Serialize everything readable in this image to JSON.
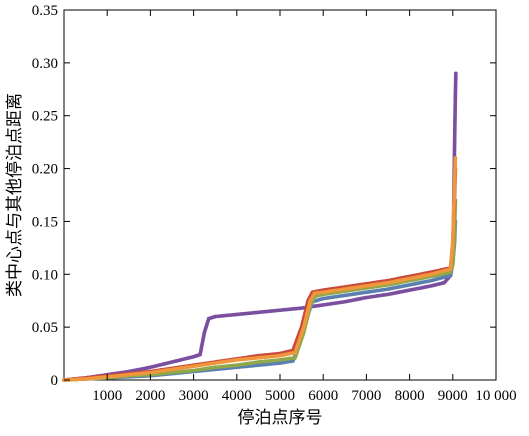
{
  "chart_data": {
    "type": "scatter",
    "title": "",
    "xlabel": "停泊点序号",
    "ylabel": "类中心点与其他停泊点距离",
    "xlim": [
      0,
      10000
    ],
    "ylim": [
      0,
      0.35
    ],
    "xticks": [
      1000,
      2000,
      3000,
      4000,
      5000,
      6000,
      7000,
      8000,
      9000,
      10000
    ],
    "xtick_labels": [
      "1000",
      "2000",
      "3000",
      "4000",
      "5000",
      "6000",
      "7000",
      "8000",
      "9000",
      "10 000"
    ],
    "yticks": [
      0,
      0.05,
      0.1,
      0.15,
      0.2,
      0.25,
      0.3,
      0.35
    ],
    "ytick_labels": [
      "0",
      "0.05",
      "0.10",
      "0.15",
      "0.20",
      "0.25",
      "0.30",
      "0.35"
    ],
    "grid": false,
    "legend": "none",
    "series": [
      {
        "color": "#7b4fa0",
        "points": [
          [
            0,
            0.0
          ],
          [
            500,
            0.002
          ],
          [
            1000,
            0.005
          ],
          [
            1500,
            0.008
          ],
          [
            2000,
            0.012
          ],
          [
            2500,
            0.017
          ],
          [
            3000,
            0.022
          ],
          [
            3150,
            0.024
          ],
          [
            3250,
            0.045
          ],
          [
            3350,
            0.058
          ],
          [
            3500,
            0.06
          ],
          [
            4000,
            0.062
          ],
          [
            4500,
            0.064
          ],
          [
            5000,
            0.066
          ],
          [
            5500,
            0.068
          ],
          [
            6000,
            0.071
          ],
          [
            6500,
            0.074
          ],
          [
            7000,
            0.078
          ],
          [
            7500,
            0.081
          ],
          [
            8000,
            0.085
          ],
          [
            8500,
            0.089
          ],
          [
            8800,
            0.092
          ],
          [
            8950,
            0.099
          ],
          [
            9000,
            0.12
          ],
          [
            9020,
            0.16
          ],
          [
            9040,
            0.22
          ],
          [
            9060,
            0.27
          ],
          [
            9070,
            0.29
          ]
        ]
      },
      {
        "color": "#5b7fb0",
        "points": [
          [
            0,
            0.0
          ],
          [
            500,
            0.001
          ],
          [
            1000,
            0.002
          ],
          [
            1500,
            0.003
          ],
          [
            2000,
            0.004
          ],
          [
            2500,
            0.006
          ],
          [
            3000,
            0.008
          ],
          [
            3500,
            0.01
          ],
          [
            4000,
            0.012
          ],
          [
            4500,
            0.014
          ],
          [
            5000,
            0.016
          ],
          [
            5300,
            0.018
          ],
          [
            5500,
            0.04
          ],
          [
            5650,
            0.062
          ],
          [
            5750,
            0.074
          ],
          [
            6000,
            0.077
          ],
          [
            6500,
            0.08
          ],
          [
            7000,
            0.083
          ],
          [
            7500,
            0.086
          ],
          [
            8000,
            0.09
          ],
          [
            8500,
            0.094
          ],
          [
            8950,
            0.099
          ],
          [
            9000,
            0.11
          ],
          [
            9040,
            0.13
          ],
          [
            9060,
            0.15
          ]
        ]
      },
      {
        "color": "#8fa84a",
        "points": [
          [
            0,
            0.0
          ],
          [
            500,
            0.001
          ],
          [
            1000,
            0.002
          ],
          [
            1500,
            0.004
          ],
          [
            2000,
            0.005
          ],
          [
            2500,
            0.007
          ],
          [
            3000,
            0.009
          ],
          [
            3500,
            0.012
          ],
          [
            4000,
            0.014
          ],
          [
            4500,
            0.017
          ],
          [
            5000,
            0.019
          ],
          [
            5350,
            0.021
          ],
          [
            5550,
            0.045
          ],
          [
            5700,
            0.07
          ],
          [
            5800,
            0.079
          ],
          [
            6000,
            0.081
          ],
          [
            6500,
            0.084
          ],
          [
            7000,
            0.087
          ],
          [
            7500,
            0.09
          ],
          [
            8000,
            0.094
          ],
          [
            8500,
            0.098
          ],
          [
            8950,
            0.102
          ],
          [
            9000,
            0.11
          ],
          [
            9040,
            0.14
          ],
          [
            9060,
            0.17
          ]
        ]
      },
      {
        "color": "#c84a3c",
        "points": [
          [
            0,
            0.0
          ],
          [
            500,
            0.002
          ],
          [
            1000,
            0.004
          ],
          [
            1500,
            0.006
          ],
          [
            2000,
            0.008
          ],
          [
            2500,
            0.011
          ],
          [
            3000,
            0.014
          ],
          [
            3500,
            0.017
          ],
          [
            4000,
            0.02
          ],
          [
            4500,
            0.023
          ],
          [
            5000,
            0.025
          ],
          [
            5300,
            0.028
          ],
          [
            5500,
            0.05
          ],
          [
            5650,
            0.075
          ],
          [
            5750,
            0.083
          ],
          [
            6000,
            0.085
          ],
          [
            6500,
            0.088
          ],
          [
            7000,
            0.091
          ],
          [
            7500,
            0.094
          ],
          [
            8000,
            0.098
          ],
          [
            8500,
            0.102
          ],
          [
            8950,
            0.106
          ],
          [
            9000,
            0.13
          ],
          [
            9030,
            0.16
          ],
          [
            9060,
            0.2
          ]
        ]
      },
      {
        "color": "#f0963c",
        "points": [
          [
            0,
            0.0
          ],
          [
            500,
            0.001
          ],
          [
            1000,
            0.003
          ],
          [
            1500,
            0.005
          ],
          [
            2000,
            0.007
          ],
          [
            2500,
            0.01
          ],
          [
            3000,
            0.013
          ],
          [
            3500,
            0.016
          ],
          [
            4000,
            0.019
          ],
          [
            4500,
            0.021
          ],
          [
            5000,
            0.023
          ],
          [
            5350,
            0.026
          ],
          [
            5550,
            0.05
          ],
          [
            5700,
            0.075
          ],
          [
            5800,
            0.082
          ],
          [
            6000,
            0.083
          ],
          [
            6500,
            0.086
          ],
          [
            7000,
            0.089
          ],
          [
            7500,
            0.092
          ],
          [
            8000,
            0.096
          ],
          [
            8500,
            0.1
          ],
          [
            8950,
            0.105
          ],
          [
            9000,
            0.13
          ],
          [
            9030,
            0.17
          ],
          [
            9060,
            0.21
          ]
        ]
      }
    ]
  }
}
